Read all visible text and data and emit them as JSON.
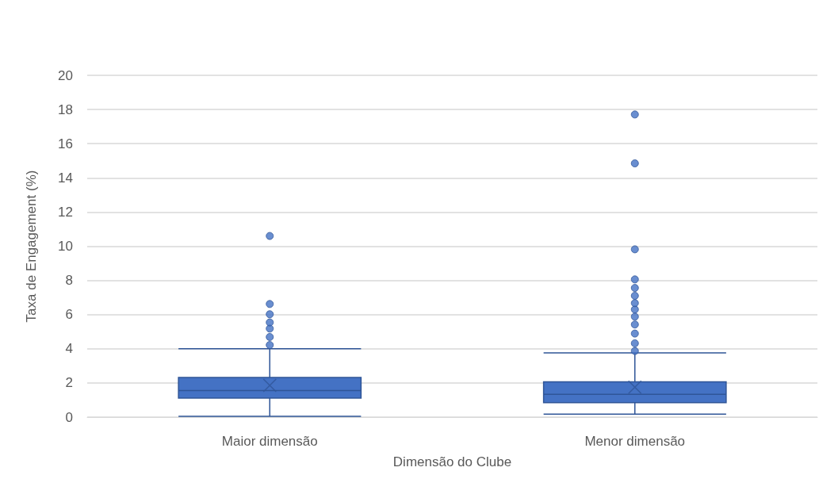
{
  "chart_data": {
    "type": "box",
    "xlabel": "Dimensão do Clube",
    "ylabel": "Taxa de Engagement (%)",
    "categories": [
      "Maior dimensão",
      "Menor dimensão"
    ],
    "boxes": [
      {
        "low": 0.05,
        "q1": 1.11,
        "median": 1.55,
        "q3": 2.32,
        "high": 4.0,
        "mean": 1.86,
        "outliers": [
          4.22,
          4.69,
          5.18,
          5.54,
          6.02,
          6.62,
          10.6
        ]
      },
      {
        "low": 0.17,
        "q1": 0.85,
        "median": 1.33,
        "q3": 2.06,
        "high": 3.76,
        "mean": 1.75,
        "outliers": [
          3.87,
          4.32,
          4.89,
          5.42,
          5.88,
          6.3,
          6.67,
          7.1,
          7.56,
          8.06,
          9.82,
          14.85,
          17.71
        ]
      }
    ],
    "color": "#4472c4",
    "ylim": [
      0,
      20
    ],
    "yticks": [
      0,
      2,
      4,
      6,
      8,
      10,
      12,
      14,
      16,
      18,
      20
    ],
    "grid": "y"
  }
}
